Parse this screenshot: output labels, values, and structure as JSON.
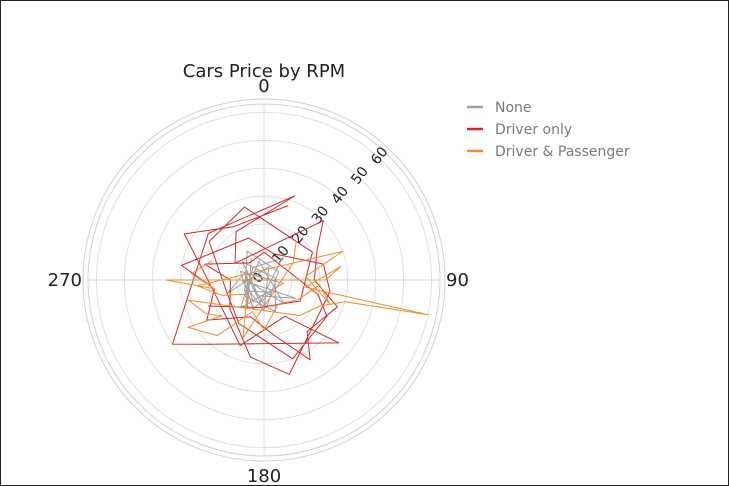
{
  "chart_data": {
    "type": "polar-line",
    "title": "Cars Price by RPM",
    "angular_axis": {
      "ticks": [
        "0",
        "90",
        "180",
        "270"
      ],
      "direction": "clockwise",
      "rotation": "0 at top"
    },
    "radial_axis": {
      "range": [
        0,
        63
      ],
      "ticks": [
        "0",
        "10",
        "20",
        "30",
        "40",
        "50",
        "60"
      ],
      "angle": 45
    },
    "legend": {
      "position": "right",
      "entries": [
        "None",
        "Driver only",
        "Driver & Passenger"
      ]
    },
    "series": [
      {
        "name": "None",
        "color": "#9e9e9e",
        "points": [
          [
            9,
            330
          ],
          [
            12,
            210
          ],
          [
            7,
            300
          ],
          [
            14,
            250
          ],
          [
            5,
            20
          ],
          [
            11,
            180
          ],
          [
            8,
            270
          ],
          [
            13,
            120
          ],
          [
            6,
            200
          ],
          [
            10,
            310
          ],
          [
            4,
            80
          ],
          [
            12,
            160
          ],
          [
            9,
            230
          ],
          [
            7,
            345
          ],
          [
            11,
            140
          ],
          [
            5,
            260
          ],
          [
            8,
            190
          ],
          [
            10,
            40
          ],
          [
            6,
            320
          ],
          [
            13,
            220
          ],
          [
            7,
            100
          ],
          [
            9,
            290
          ],
          [
            11,
            200
          ],
          [
            5,
            150
          ],
          [
            8,
            240
          ],
          [
            12,
            330
          ],
          [
            6,
            60
          ],
          [
            10,
            175
          ],
          [
            7,
            285
          ],
          [
            9,
            205
          ]
        ]
      },
      {
        "name": "Driver only",
        "color": "#d62728",
        "points": [
          [
            28,
            18
          ],
          [
            22,
            330
          ],
          [
            33,
            300
          ],
          [
            18,
            250
          ],
          [
            25,
            200
          ],
          [
            15,
            150
          ],
          [
            35,
            130
          ],
          [
            30,
            220
          ],
          [
            40,
            235
          ],
          [
            26,
            310
          ],
          [
            32,
            20
          ],
          [
            20,
            330
          ],
          [
            12,
            300
          ],
          [
            30,
            45
          ],
          [
            22,
            60
          ],
          [
            18,
            90
          ],
          [
            28,
            110
          ],
          [
            24,
            140
          ],
          [
            33,
            150
          ],
          [
            20,
            170
          ],
          [
            14,
            200
          ],
          [
            25,
            235
          ],
          [
            18,
            260
          ],
          [
            30,
            280
          ],
          [
            16,
            340
          ],
          [
            10,
            20
          ],
          [
            22,
            75
          ],
          [
            24,
            100
          ],
          [
            35,
            165
          ],
          [
            28,
            190
          ],
          [
            16,
            230
          ],
          [
            12,
            270
          ],
          [
            22,
            285
          ],
          [
            8,
            320
          ],
          [
            10,
            0
          ],
          [
            20,
            105
          ],
          [
            26,
            120
          ],
          [
            30,
            160
          ],
          [
            18,
            210
          ],
          [
            14,
            250
          ],
          [
            24,
            305
          ],
          [
            27,
            345
          ],
          [
            20,
            60
          ],
          [
            15,
            120
          ],
          [
            10,
            190
          ],
          [
            22,
            245
          ]
        ]
      },
      {
        "name": "Driver & Passenger",
        "color": "#f28c28",
        "points": [
          [
            20,
            290
          ],
          [
            26,
            275
          ],
          [
            18,
            260
          ],
          [
            35,
            270
          ],
          [
            22,
            90
          ],
          [
            28,
            80
          ],
          [
            15,
            100
          ],
          [
            60,
            102
          ],
          [
            30,
            105
          ],
          [
            22,
            115
          ],
          [
            18,
            135
          ],
          [
            28,
            255
          ],
          [
            24,
            240
          ],
          [
            20,
            230
          ],
          [
            32,
            238
          ],
          [
            26,
            220
          ],
          [
            12,
            200
          ],
          [
            18,
            180
          ],
          [
            10,
            150
          ],
          [
            14,
            120
          ],
          [
            20,
            95
          ],
          [
            25,
            110
          ],
          [
            15,
            85
          ],
          [
            30,
            70
          ],
          [
            24,
            265
          ],
          [
            16,
            250
          ],
          [
            8,
            230
          ],
          [
            22,
            200
          ],
          [
            12,
            60
          ],
          [
            18,
            40
          ]
        ]
      }
    ]
  }
}
